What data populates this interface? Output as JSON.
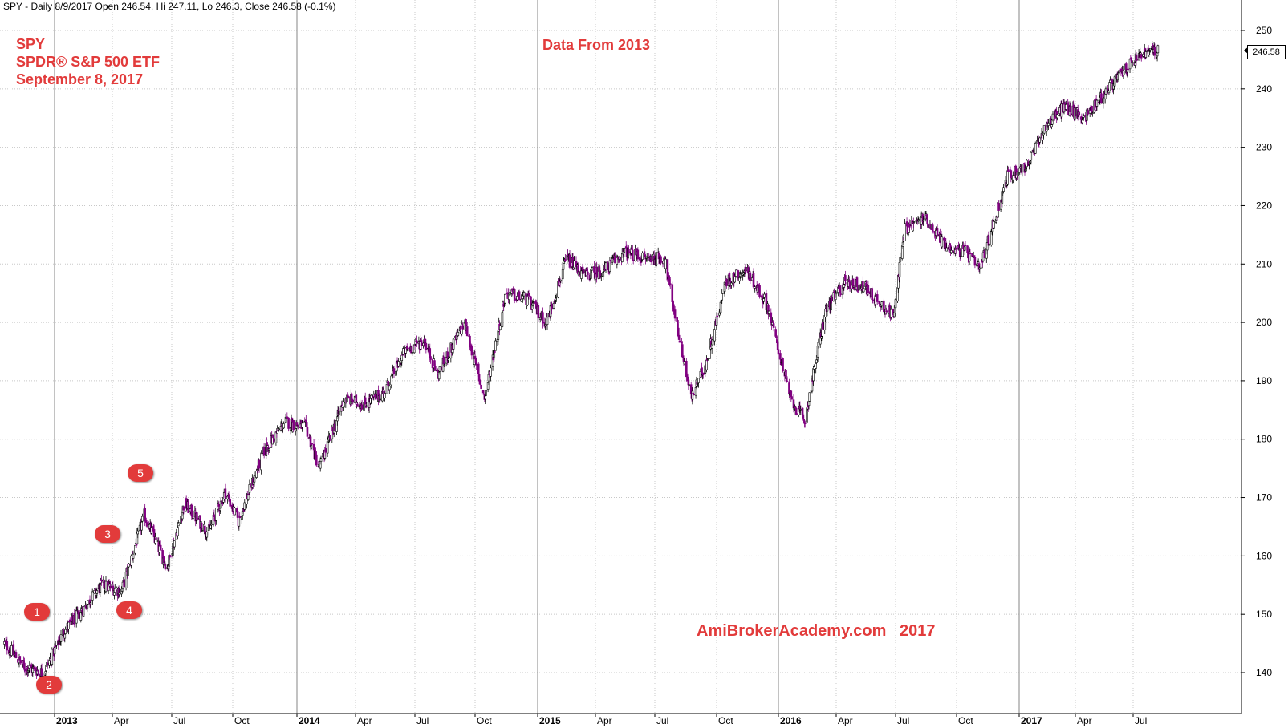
{
  "header": {
    "info": "SPY - Daily 8/9/2017 Open 246.54, Hi 247.11, Lo 246.3, Close 246.58 (-0.1%)"
  },
  "title": {
    "line1": "SPY",
    "line2": "SPDR® S&P 500 ETF",
    "line3": "September 8, 2017"
  },
  "subtitle": "Data From 2013",
  "watermark": "AmiBrokerAcademy.com   2017",
  "last_price_label": "246.58",
  "markers": [
    {
      "label": "1"
    },
    {
      "label": "2"
    },
    {
      "label": "3"
    },
    {
      "label": "4"
    },
    {
      "label": "5"
    }
  ],
  "colors": {
    "up_candle": "#000000",
    "down_candle": "#800080",
    "annotation": "#e23b3b",
    "grid": "#c8c8c8"
  },
  "chart_data": {
    "type": "line",
    "title": "",
    "xlabel": "",
    "ylabel": "",
    "ylim": [
      132.5,
      252
    ],
    "y_ticks": [
      140,
      150,
      160,
      170,
      180,
      190,
      200,
      210,
      220,
      230,
      240,
      250
    ],
    "x_ticks": [
      {
        "label": "2013",
        "major": true
      },
      {
        "label": "Apr",
        "major": false
      },
      {
        "label": "Jul",
        "major": false
      },
      {
        "label": "Oct",
        "major": false
      },
      {
        "label": "2014",
        "major": true
      },
      {
        "label": "Apr",
        "major": false
      },
      {
        "label": "Jul",
        "major": false
      },
      {
        "label": "Oct",
        "major": false
      },
      {
        "label": "2015",
        "major": true
      },
      {
        "label": "Apr",
        "major": false
      },
      {
        "label": "Jul",
        "major": false
      },
      {
        "label": "Oct",
        "major": false
      },
      {
        "label": "2016",
        "major": true
      },
      {
        "label": "Apr",
        "major": false
      },
      {
        "label": "Jul",
        "major": false
      },
      {
        "label": "Oct",
        "major": false
      },
      {
        "label": "2017",
        "major": true
      },
      {
        "label": "Apr",
        "major": false
      },
      {
        "label": "Jul",
        "major": false
      }
    ],
    "grid": true,
    "series": [
      {
        "x": [
          "2012-10-15",
          "2012-11-15",
          "2012-12-15",
          "2013-01-15",
          "2013-02-15",
          "2013-03-15",
          "2013-04-15",
          "2013-05-20",
          "2013-06-24",
          "2013-07-20",
          "2013-08-25",
          "2013-09-20",
          "2013-10-09",
          "2013-11-15",
          "2013-12-15",
          "2014-01-15",
          "2014-02-04",
          "2014-03-15",
          "2014-04-15",
          "2014-05-15",
          "2014-06-15",
          "2014-07-15",
          "2014-08-05",
          "2014-09-15",
          "2014-10-15",
          "2014-11-15",
          "2014-12-15",
          "2015-01-15",
          "2015-02-15",
          "2015-03-15",
          "2015-04-15",
          "2015-05-15",
          "2015-06-15",
          "2015-07-15",
          "2015-08-24",
          "2015-09-15",
          "2015-10-15",
          "2015-11-15",
          "2015-12-15",
          "2016-01-20",
          "2016-02-11",
          "2016-03-15",
          "2016-04-15",
          "2016-05-15",
          "2016-06-27",
          "2016-07-15",
          "2016-08-15",
          "2016-09-15",
          "2016-10-15",
          "2016-11-04",
          "2016-12-15",
          "2017-01-15",
          "2017-02-15",
          "2017-03-15",
          "2017-04-15",
          "2017-05-15",
          "2017-06-15",
          "2017-07-15",
          "2017-08-09"
        ],
        "values": [
          145,
          141,
          140,
          147,
          151,
          155,
          154,
          167,
          158,
          169,
          164,
          171,
          166,
          178,
          183,
          182,
          175,
          187,
          186,
          188,
          195,
          197,
          191,
          200,
          187,
          205,
          204,
          200,
          211,
          208,
          209,
          212,
          211,
          211,
          187,
          193,
          207,
          209,
          203,
          187,
          183,
          202,
          207,
          206,
          201,
          216,
          218,
          213,
          212,
          209,
          225,
          227,
          234,
          237,
          235,
          239,
          243,
          246,
          246.58
        ]
      }
    ]
  }
}
